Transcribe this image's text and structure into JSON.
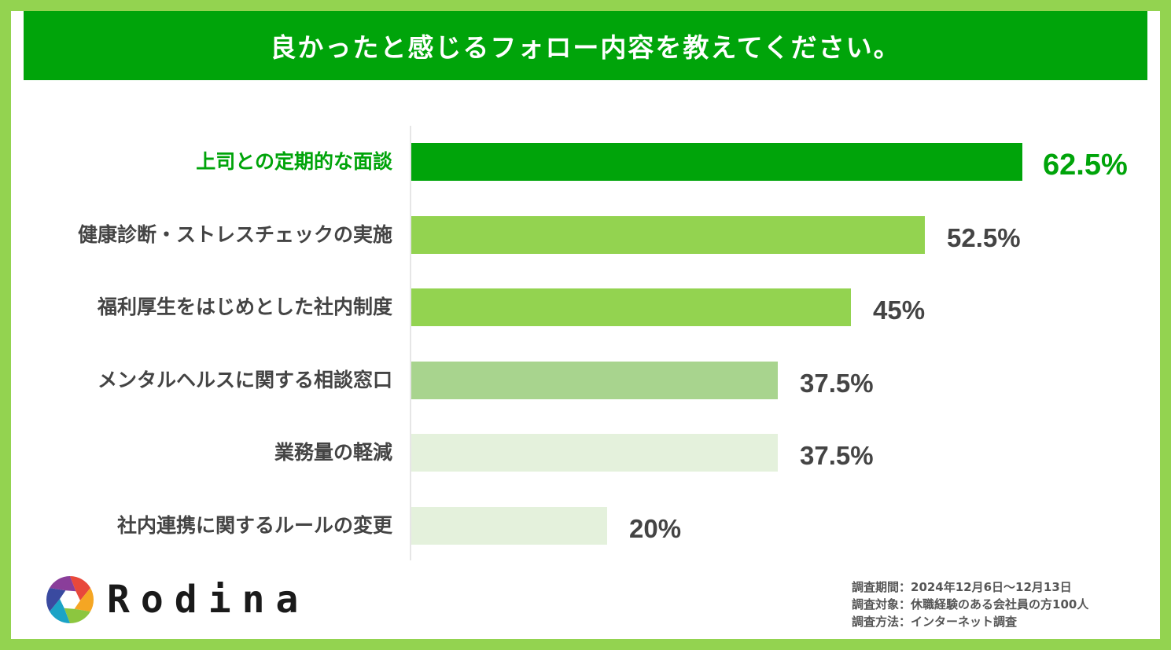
{
  "header": {
    "title": "良かったと感じるフォロー内容を教えてください。"
  },
  "chart_data": {
    "type": "bar",
    "orientation": "horizontal",
    "title": "良かったと感じるフォロー内容を教えてください。",
    "categories": [
      "上司との定期的な面談",
      "健康診断・ストレスチェックの実施",
      "福利厚生をはじめとした社内制度",
      "メンタルヘルスに関する相談窓口",
      "業務量の軽減",
      "社内連携に関するルールの変更"
    ],
    "values": [
      62.5,
      52.5,
      45,
      37.5,
      37.5,
      20
    ],
    "value_labels": [
      "62.5%",
      "52.5%",
      "45%",
      "37.5%",
      "37.5%",
      "20%"
    ],
    "bar_colors": [
      "#00a40a",
      "#93d350",
      "#93d350",
      "#a8d48e",
      "#e4f1dc",
      "#e4f1dc"
    ],
    "highlight_color": "#00a40a",
    "text_color": "#444444",
    "xlim": [
      0,
      62.5
    ],
    "grid": false,
    "legend": "none"
  },
  "brand": {
    "name": "Rodina",
    "logo_colors": [
      "#e8483b",
      "#f5a623",
      "#8cc63f",
      "#1ba3c6",
      "#3a4aa0",
      "#8a3e9a"
    ]
  },
  "survey": {
    "period": "調査期間：2024年12月6日〜12月13日",
    "target": "調査対象：休職経験のある会社員の方100人",
    "method": "調査方法：インターネット調査"
  }
}
